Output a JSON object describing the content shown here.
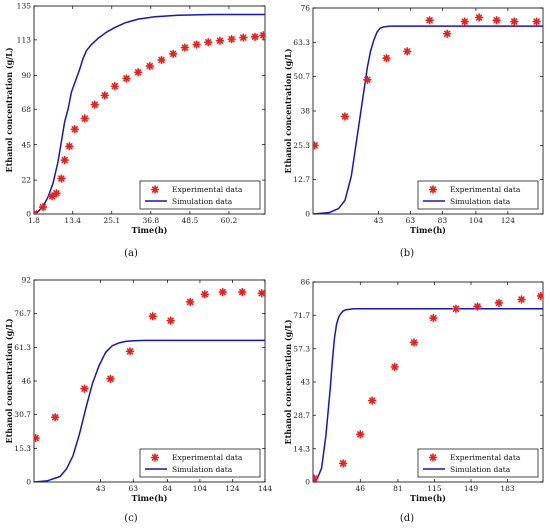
{
  "chart_data": [
    {
      "type": "line",
      "caption": "(a)",
      "xlabel": "Time(h)",
      "ylabel": "Ethanol concentration (g/L)",
      "xlim": [
        1.8,
        71
      ],
      "ylim": [
        0,
        135
      ],
      "xticks": [
        "1.8",
        "13.4",
        "25.1",
        "36.8",
        "48.5",
        "60.2"
      ],
      "yticks": [
        "0",
        "22",
        "45",
        "68",
        "90",
        "113",
        "135"
      ],
      "xtick_values": [
        1.8,
        13.4,
        25.1,
        36.8,
        48.5,
        60.2
      ],
      "ytick_values": [
        0,
        22,
        45,
        68,
        90,
        113,
        135
      ],
      "legend_position": "lower-right",
      "series": [
        {
          "name": "Experimental data",
          "style": "marker",
          "color": "#e8201c",
          "x": [
            1.8,
            4.5,
            7.2,
            8.5,
            10.0,
            11.0,
            12.4,
            14.0,
            17.0,
            20.0,
            23.0,
            26.0,
            29.5,
            33.0,
            36.5,
            40.0,
            43.5,
            47.0,
            50.5,
            54.0,
            57.5,
            61.0,
            64.5,
            68.0,
            70.5
          ],
          "y": [
            0.3,
            4.5,
            11.5,
            13.5,
            23.0,
            35.0,
            44.0,
            55.0,
            62.0,
            71.0,
            77.0,
            83.0,
            88.0,
            92.0,
            96.0,
            100.0,
            104.0,
            108.0,
            110.0,
            111.5,
            112.5,
            113.5,
            114.5,
            115.0,
            116.0
          ]
        },
        {
          "name": "Simulation data",
          "style": "line",
          "color": "#1515c8",
          "x": [
            1.8,
            3.0,
            4.5,
            6.0,
            7.5,
            9.0,
            10.0,
            11.0,
            12.0,
            13.0,
            13.5,
            14.5,
            15.5,
            16.5,
            17.5,
            19.0,
            21.0,
            23.5,
            26.0,
            29.0,
            33.0,
            38.0,
            45.0,
            55.0,
            65.0,
            71.0
          ],
          "y": [
            0,
            1.5,
            5.0,
            11.0,
            20.0,
            34.0,
            47.0,
            60.0,
            68.0,
            79.0,
            82.0,
            88.0,
            94.0,
            101.0,
            106.0,
            110.0,
            114.0,
            118.0,
            121.0,
            124.0,
            126.5,
            128.0,
            129.0,
            129.5,
            129.5,
            129.5
          ]
        }
      ]
    },
    {
      "type": "line",
      "caption": "(b)",
      "xlabel": "Time(h)",
      "ylabel": "Ethanol concentration (g/L)",
      "xlim": [
        2,
        146
      ],
      "ylim": [
        0,
        76
      ],
      "xticks": [
        "43",
        "63",
        "83",
        "104",
        "124"
      ],
      "yticks": [
        "0",
        "12.7",
        "25.3",
        "38",
        "50.7",
        "63.3",
        "76"
      ],
      "xtick_values": [
        43,
        63,
        83,
        104,
        124
      ],
      "ytick_values": [
        0,
        12.7,
        25.3,
        38,
        50.7,
        63.3,
        76
      ],
      "legend_position": "lower-right",
      "series": [
        {
          "name": "Experimental data",
          "style": "marker",
          "color": "#e8201c",
          "x": [
            3,
            22,
            36,
            48,
            61,
            75,
            86,
            97,
            106,
            117,
            128,
            142
          ],
          "y": [
            25.3,
            36.0,
            49.5,
            57.5,
            60.0,
            71.5,
            66.5,
            71.0,
            72.5,
            71.5,
            71.0,
            71.0
          ],
          "_note": ""
        },
        {
          "name": "Simulation data",
          "style": "line",
          "color": "#1515c8",
          "x": [
            2,
            12,
            18,
            22,
            26,
            30,
            34,
            36,
            38,
            40,
            42,
            44,
            46,
            50,
            60,
            80,
            100,
            146
          ],
          "y": [
            0,
            0.5,
            2.0,
            5.0,
            14.0,
            30.0,
            46.0,
            54.0,
            60.0,
            64.0,
            67.0,
            68.5,
            69.0,
            69.3,
            69.3,
            69.3,
            69.3,
            69.3
          ]
        }
      ]
    },
    {
      "type": "line",
      "caption": "(c)",
      "xlabel": "Time(h)",
      "ylabel": "Ethanol concentration (g/L)",
      "xlim": [
        2,
        144
      ],
      "ylim": [
        0,
        92
      ],
      "xticks": [
        "43",
        "63",
        "84",
        "104",
        "124",
        "144"
      ],
      "yticks": [
        "0",
        "15.3",
        "30.7",
        "46",
        "61.3",
        "76.7",
        "92"
      ],
      "xtick_values": [
        43,
        63,
        84,
        104,
        124,
        144
      ],
      "ytick_values": [
        0,
        15.3,
        30.7,
        46,
        61.3,
        76.7,
        92
      ],
      "legend_position": "lower-right",
      "series": [
        {
          "name": "Experimental data",
          "style": "marker",
          "color": "#e8201c",
          "x": [
            3,
            15,
            33,
            49,
            61,
            75,
            86,
            98,
            107,
            118,
            130,
            142
          ],
          "y": [
            20.0,
            29.5,
            42.5,
            47.0,
            59.5,
            75.5,
            73.5,
            82.0,
            85.5,
            86.5,
            86.5,
            86.0
          ]
        },
        {
          "name": "Simulation data",
          "style": "line",
          "color": "#1515c8",
          "x": [
            2,
            10,
            18,
            22,
            26,
            30,
            34,
            38,
            42,
            46,
            50,
            54,
            58,
            62,
            70,
            90,
            144
          ],
          "y": [
            0,
            0.5,
            2.5,
            6.0,
            12.0,
            22.0,
            34.0,
            45.0,
            53.0,
            59.0,
            62.0,
            63.3,
            64.0,
            64.3,
            64.5,
            64.5,
            64.5
          ]
        }
      ]
    },
    {
      "type": "line",
      "caption": "(d)",
      "xlabel": "Time(h)",
      "ylabel": "Ethanol concentration (g/L)",
      "xlim": [
        2,
        216
      ],
      "ylim": [
        0,
        86
      ],
      "xticks": [
        "46",
        "81",
        "115",
        "149",
        "183"
      ],
      "yticks": [
        "0",
        "14.3",
        "28.7",
        "43",
        "57.3",
        "71.7",
        "86"
      ],
      "xtick_values": [
        46,
        81,
        115,
        149,
        183
      ],
      "ytick_values": [
        0,
        14.3,
        28.7,
        43,
        57.3,
        71.7,
        86
      ],
      "legend_position": "lower-right",
      "series": [
        {
          "name": "Experimental data",
          "style": "marker",
          "color": "#e8201c",
          "x": [
            3,
            30,
            46,
            57,
            78,
            96,
            114,
            135,
            155,
            175,
            196,
            214
          ],
          "y": [
            1.5,
            8.0,
            20.5,
            35.0,
            49.5,
            60.0,
            70.5,
            74.5,
            75.5,
            77.0,
            78.5,
            80.0
          ]
        },
        {
          "name": "Simulation data",
          "style": "line",
          "color": "#1515c8",
          "x": [
            2,
            6,
            10,
            14,
            18,
            20,
            22,
            24,
            26,
            28,
            30,
            32,
            40,
            60,
            100,
            150,
            216
          ],
          "y": [
            0,
            1.5,
            6.0,
            20.0,
            40.0,
            52.0,
            62.0,
            68.0,
            71.0,
            72.5,
            73.5,
            74.0,
            74.5,
            74.5,
            74.5,
            74.5,
            74.5
          ]
        }
      ]
    }
  ]
}
